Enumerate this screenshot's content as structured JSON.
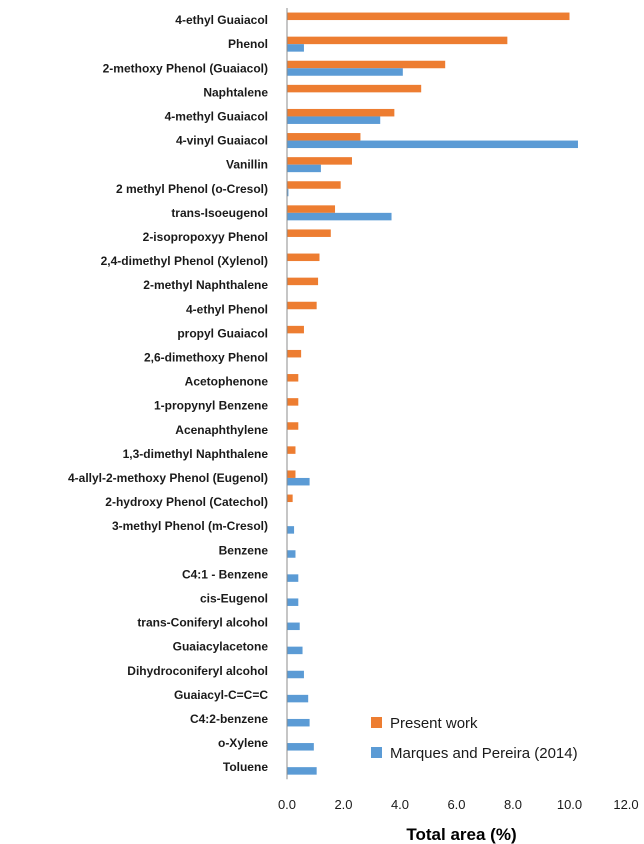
{
  "chart_data": {
    "type": "bar",
    "orientation": "horizontal",
    "xlabel": "Total area (%)",
    "xlim": [
      0,
      12
    ],
    "xticks": [
      "0.0",
      "2.0",
      "4.0",
      "6.0",
      "8.0",
      "10.0",
      "12.0"
    ],
    "grid": false,
    "legend_position": "bottom-right",
    "categories": [
      "4-ethyl Guaiacol",
      "Phenol",
      "2-methoxy Phenol (Guaiacol)",
      "Naphtalene",
      "4-methyl Guaiacol",
      "4-vinyl Guaiacol",
      "Vanillin",
      "2 methyl Phenol (o-Cresol)",
      "trans-Isoeugenol",
      "2-isopropoxyy Phenol",
      "2,4-dimethyl Phenol (Xylenol)",
      "2-methyl Naphthalene",
      "4-ethyl Phenol",
      "propyl Guaiacol",
      "2,6-dimethoxy Phenol",
      "Acetophenone",
      "1-propynyl Benzene",
      "Acenaphthylene",
      "1,3-dimethyl Naphthalene",
      "4-allyl-2-methoxy Phenol (Eugenol)",
      "2-hydroxy Phenol (Catechol)",
      "3-methyl Phenol (m-Cresol)",
      "Benzene",
      "C4:1 - Benzene",
      "cis-Eugenol",
      "trans-Coniferyl alcohol",
      "Guaiacylacetone",
      "Dihydroconiferyl alcohol",
      "Guaiacyl-C=C=C",
      "C4:2-benzene",
      "o-Xylene",
      "Toluene"
    ],
    "series": [
      {
        "name": "Present work",
        "color": "#ed7d31",
        "values": [
          10.0,
          7.8,
          5.6,
          4.75,
          3.8,
          2.6,
          2.3,
          1.9,
          1.7,
          1.55,
          1.15,
          1.1,
          1.05,
          0.6,
          0.5,
          0.4,
          0.4,
          0.4,
          0.3,
          0.3,
          0.2,
          0,
          0,
          0,
          0,
          0,
          0,
          0,
          0,
          0,
          0,
          0
        ]
      },
      {
        "name": "Marques and Pereira (2014)",
        "color": "#5b9bd5",
        "values": [
          0,
          0.6,
          4.1,
          0,
          3.3,
          10.3,
          1.2,
          0.05,
          3.7,
          0,
          0,
          0,
          0,
          0,
          0,
          0,
          0,
          0,
          0,
          0.8,
          0,
          0.25,
          0.3,
          0.4,
          0.4,
          0.45,
          0.55,
          0.6,
          0.75,
          0.8,
          0.95,
          1.05
        ]
      }
    ]
  }
}
